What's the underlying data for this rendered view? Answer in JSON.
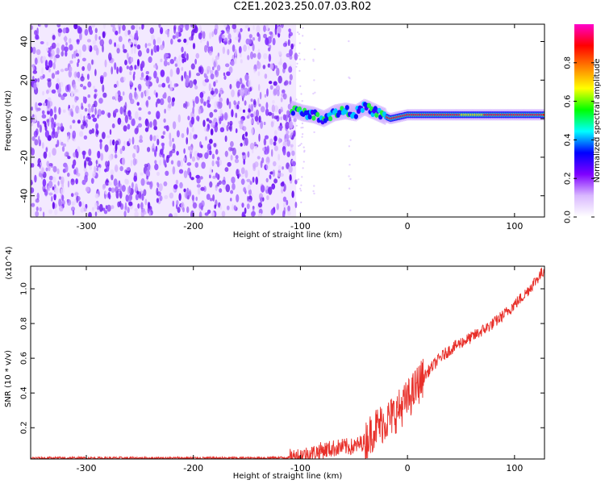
{
  "title": "C2E1.2023.250.07.03.R02",
  "chart_data": [
    {
      "type": "heatmap",
      "xlabel": "Height of straight line (km)",
      "ylabel": "Frequency (Hz)",
      "xlim": [
        -352,
        128
      ],
      "ylim": [
        -51,
        49
      ],
      "xticks": [
        -300,
        -200,
        -100,
        0,
        100
      ],
      "yticks": [
        -40,
        -20,
        0,
        20,
        40
      ],
      "colorbar": {
        "label": "Normalized spectral amplitude",
        "range": [
          0.0,
          1.0
        ],
        "ticks": [
          "0.0",
          "0.2",
          "0.4",
          "0.6",
          "0.8"
        ],
        "colors": [
          "#ffffff",
          "#d9b8ff",
          "#7f00ff",
          "#0000ff",
          "#00ffff",
          "#00ff00",
          "#ffff00",
          "#ff8000",
          "#ff0000",
          "#ff00cc"
        ]
      },
      "regions": [
        {
          "desc": "broadband noise",
          "x": [
            -352,
            -104
          ],
          "freq": [
            -51,
            49
          ],
          "amplitude": 0.15
        },
        {
          "desc": "signal trace",
          "points": [
            [
              -108,
              5
            ],
            [
              -98,
              3
            ],
            [
              -88,
              2
            ],
            [
              -78,
              0
            ],
            [
              -68,
              3
            ],
            [
              -58,
              4
            ],
            [
              -48,
              3
            ],
            [
              -40,
              6
            ],
            [
              -32,
              4
            ],
            [
              -24,
              2
            ],
            [
              -16,
              0
            ],
            [
              -8,
              1
            ],
            [
              0,
              2
            ],
            [
              20,
              2
            ],
            [
              50,
              2
            ],
            [
              80,
              2
            ],
            [
              100,
              2
            ],
            [
              128,
              2
            ]
          ]
        }
      ]
    },
    {
      "type": "line",
      "xlabel": "Height of straight line (km)",
      "ylabel": "SNR (10 * v/v)",
      "y_multiplier": "(x10^4)",
      "xlim": [
        -352,
        128
      ],
      "ylim": [
        0.02,
        1.13
      ],
      "xticks": [
        -300,
        -200,
        -100,
        0,
        100
      ],
      "yticks": [
        0.2,
        0.4,
        0.6,
        0.8,
        1.0
      ],
      "series": [
        {
          "color": "#e8302a",
          "x": [
            -352,
            -300,
            -250,
            -200,
            -150,
            -110,
            -100,
            -90,
            -80,
            -70,
            -60,
            -50,
            -40,
            -30,
            -20,
            -10,
            0,
            5,
            10,
            15,
            20,
            30,
            40,
            50,
            60,
            70,
            80,
            90,
            100,
            110,
            120,
            128
          ],
          "values": [
            0.025,
            0.025,
            0.025,
            0.025,
            0.025,
            0.028,
            0.04,
            0.05,
            0.07,
            0.08,
            0.09,
            0.09,
            0.12,
            0.2,
            0.24,
            0.29,
            0.36,
            0.4,
            0.45,
            0.49,
            0.53,
            0.6,
            0.65,
            0.69,
            0.72,
            0.76,
            0.8,
            0.85,
            0.91,
            0.97,
            1.05,
            1.11
          ]
        }
      ]
    }
  ]
}
